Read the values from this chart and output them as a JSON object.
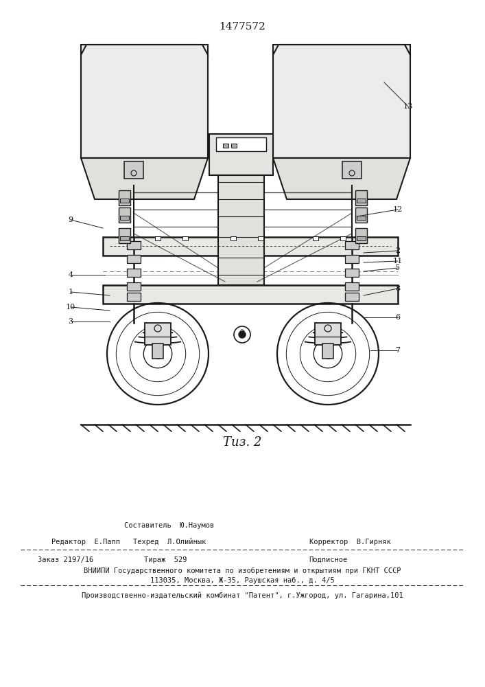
{
  "title": "1477572",
  "bg_color": "#f5f5f0",
  "line_color": "#1a1a1a",
  "fig_caption": "Τиз. 2",
  "footer_editor": "Редактор  Е.Папп",
  "footer_composer_label": "Составитель  Ю.Наумов",
  "footer_techred": "Техред  Л.Олийнык",
  "footer_corrector": "Корректор  В.Гирняк",
  "footer_order": "Заказ 2197/16",
  "footer_tirazh": "Тираж  529",
  "footer_podpisnoe": "Подписное",
  "footer_vniip1": "ВНИИПИ Государственного комитета по изобретениям и открытиям при ГКНТ СССР",
  "footer_vniip2": "113035, Москва, Ж-35, Раушская наб., д. 4/5",
  "footer_patent": "Производственно-издательский комбинат \"Патент\", г.Ужгород, ул. Гагарина,101"
}
